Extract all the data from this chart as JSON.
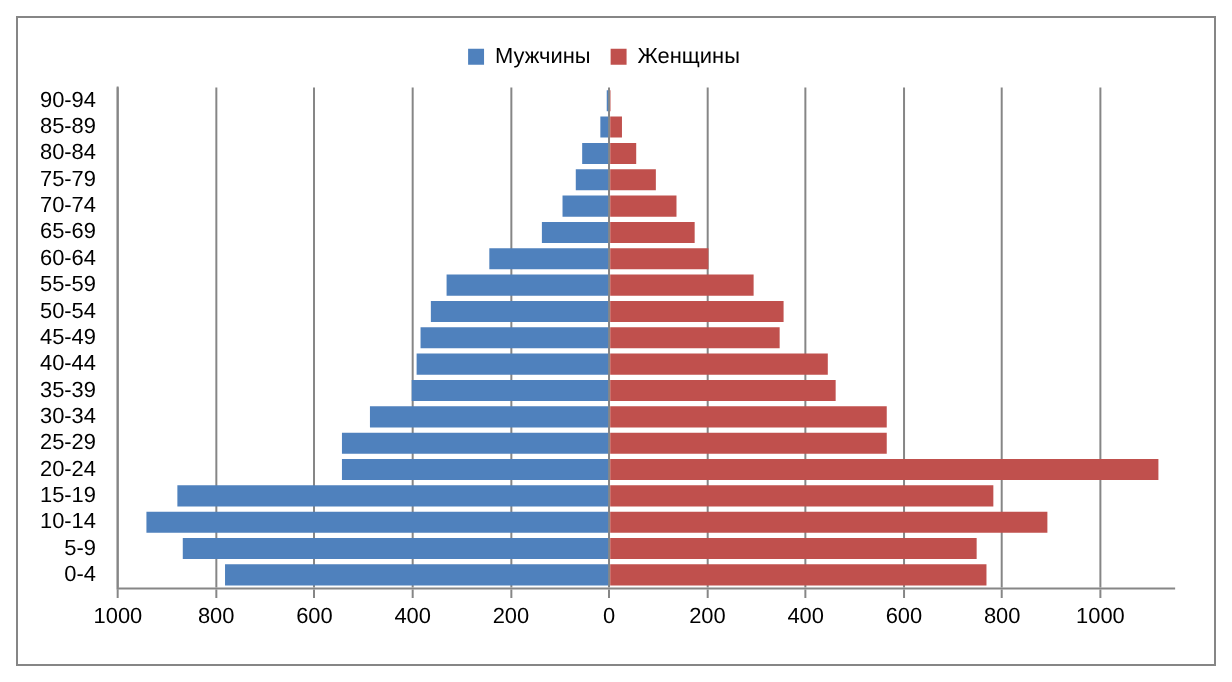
{
  "chart_data": {
    "type": "bar",
    "orientation": "horizontal",
    "stacked": true,
    "grid": "x",
    "legend": "top",
    "categories": [
      "90-94",
      "85-89",
      "80-84",
      "75-79",
      "70-74",
      "65-69",
      "60-64",
      "55-59",
      "50-54",
      "45-49",
      "40-44",
      "35-39",
      "30-34",
      "25-29",
      "20-24",
      "15-19",
      "10-14",
      "5-9",
      "0-4"
    ],
    "series": [
      {
        "name": "Мужчины",
        "color": "#4f81bd",
        "values": [
          -5,
          -18,
          -55,
          -68,
          -95,
          -137,
          -244,
          -331,
          -363,
          -384,
          -392,
          -402,
          -487,
          -544,
          -544,
          -879,
          -942,
          -868,
          -782
        ]
      },
      {
        "name": "Женщины",
        "color": "#c0504d",
        "values": [
          3,
          26,
          55,
          95,
          137,
          174,
          202,
          294,
          355,
          347,
          445,
          461,
          565,
          565,
          1118,
          782,
          892,
          748,
          768
        ]
      }
    ],
    "xlim": [
      -1000,
      1150
    ],
    "xticks": [
      {
        "value": -1000,
        "label": "1000"
      },
      {
        "value": -800,
        "label": "800"
      },
      {
        "value": -600,
        "label": "600"
      },
      {
        "value": -400,
        "label": "400"
      },
      {
        "value": -200,
        "label": "200"
      },
      0,
      200,
      400,
      600,
      800,
      1000
    ]
  }
}
